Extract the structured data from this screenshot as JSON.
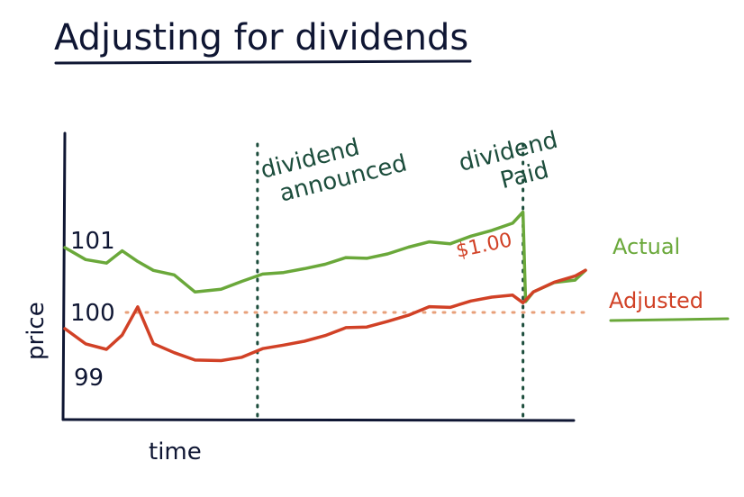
{
  "title": "Adjusting for dividends",
  "chart_data": {
    "type": "line",
    "xlabel": "time",
    "ylabel": "price",
    "y_tick_labels": [
      "101",
      "100",
      "99"
    ],
    "annotations": {
      "dividend_announced": [
        "dividend",
        "announced"
      ],
      "dividend_paid": [
        "dividend",
        "Paid"
      ],
      "dividend_amount": "$1.00"
    },
    "series": [
      {
        "name": "Actual",
        "color": "#6aa83a",
        "x": [
          0,
          4,
          8,
          11,
          14,
          17,
          21,
          25,
          30,
          34,
          38,
          42,
          46,
          50,
          54,
          58,
          62,
          66,
          70,
          74,
          78,
          82,
          86,
          88,
          88.5,
          90,
          94,
          98,
          100
        ],
        "values": [
          101.0,
          100.85,
          100.75,
          100.92,
          100.8,
          100.68,
          100.55,
          100.3,
          100.38,
          100.5,
          100.55,
          100.62,
          100.7,
          100.75,
          100.8,
          100.86,
          100.92,
          101.0,
          101.05,
          101.1,
          101.18,
          101.25,
          101.35,
          101.6,
          100.15,
          100.3,
          100.45,
          100.55,
          100.65
        ]
      },
      {
        "name": "Adjusted",
        "color": "#d14126",
        "x": [
          0,
          4,
          8,
          11,
          14,
          17,
          21,
          25,
          30,
          34,
          38,
          42,
          46,
          50,
          54,
          58,
          62,
          66,
          70,
          74,
          78,
          82,
          86,
          88,
          90,
          94,
          98,
          100
        ],
        "values": [
          99.75,
          99.55,
          99.42,
          99.62,
          100.1,
          99.55,
          99.35,
          99.25,
          99.28,
          99.33,
          99.4,
          99.5,
          99.58,
          99.65,
          99.72,
          99.8,
          99.88,
          99.95,
          100.05,
          100.12,
          100.18,
          100.22,
          100.24,
          100.2,
          100.3,
          100.45,
          100.55,
          100.65
        ]
      },
      {
        "name": "",
        "color": "#e8a07a",
        "style": "dotted",
        "x": [
          0,
          100
        ],
        "values": [
          100,
          100
        ]
      }
    ],
    "markers": [
      {
        "label": "dividend announced",
        "x": 37
      },
      {
        "label": "dividend paid",
        "x": 88
      }
    ]
  }
}
